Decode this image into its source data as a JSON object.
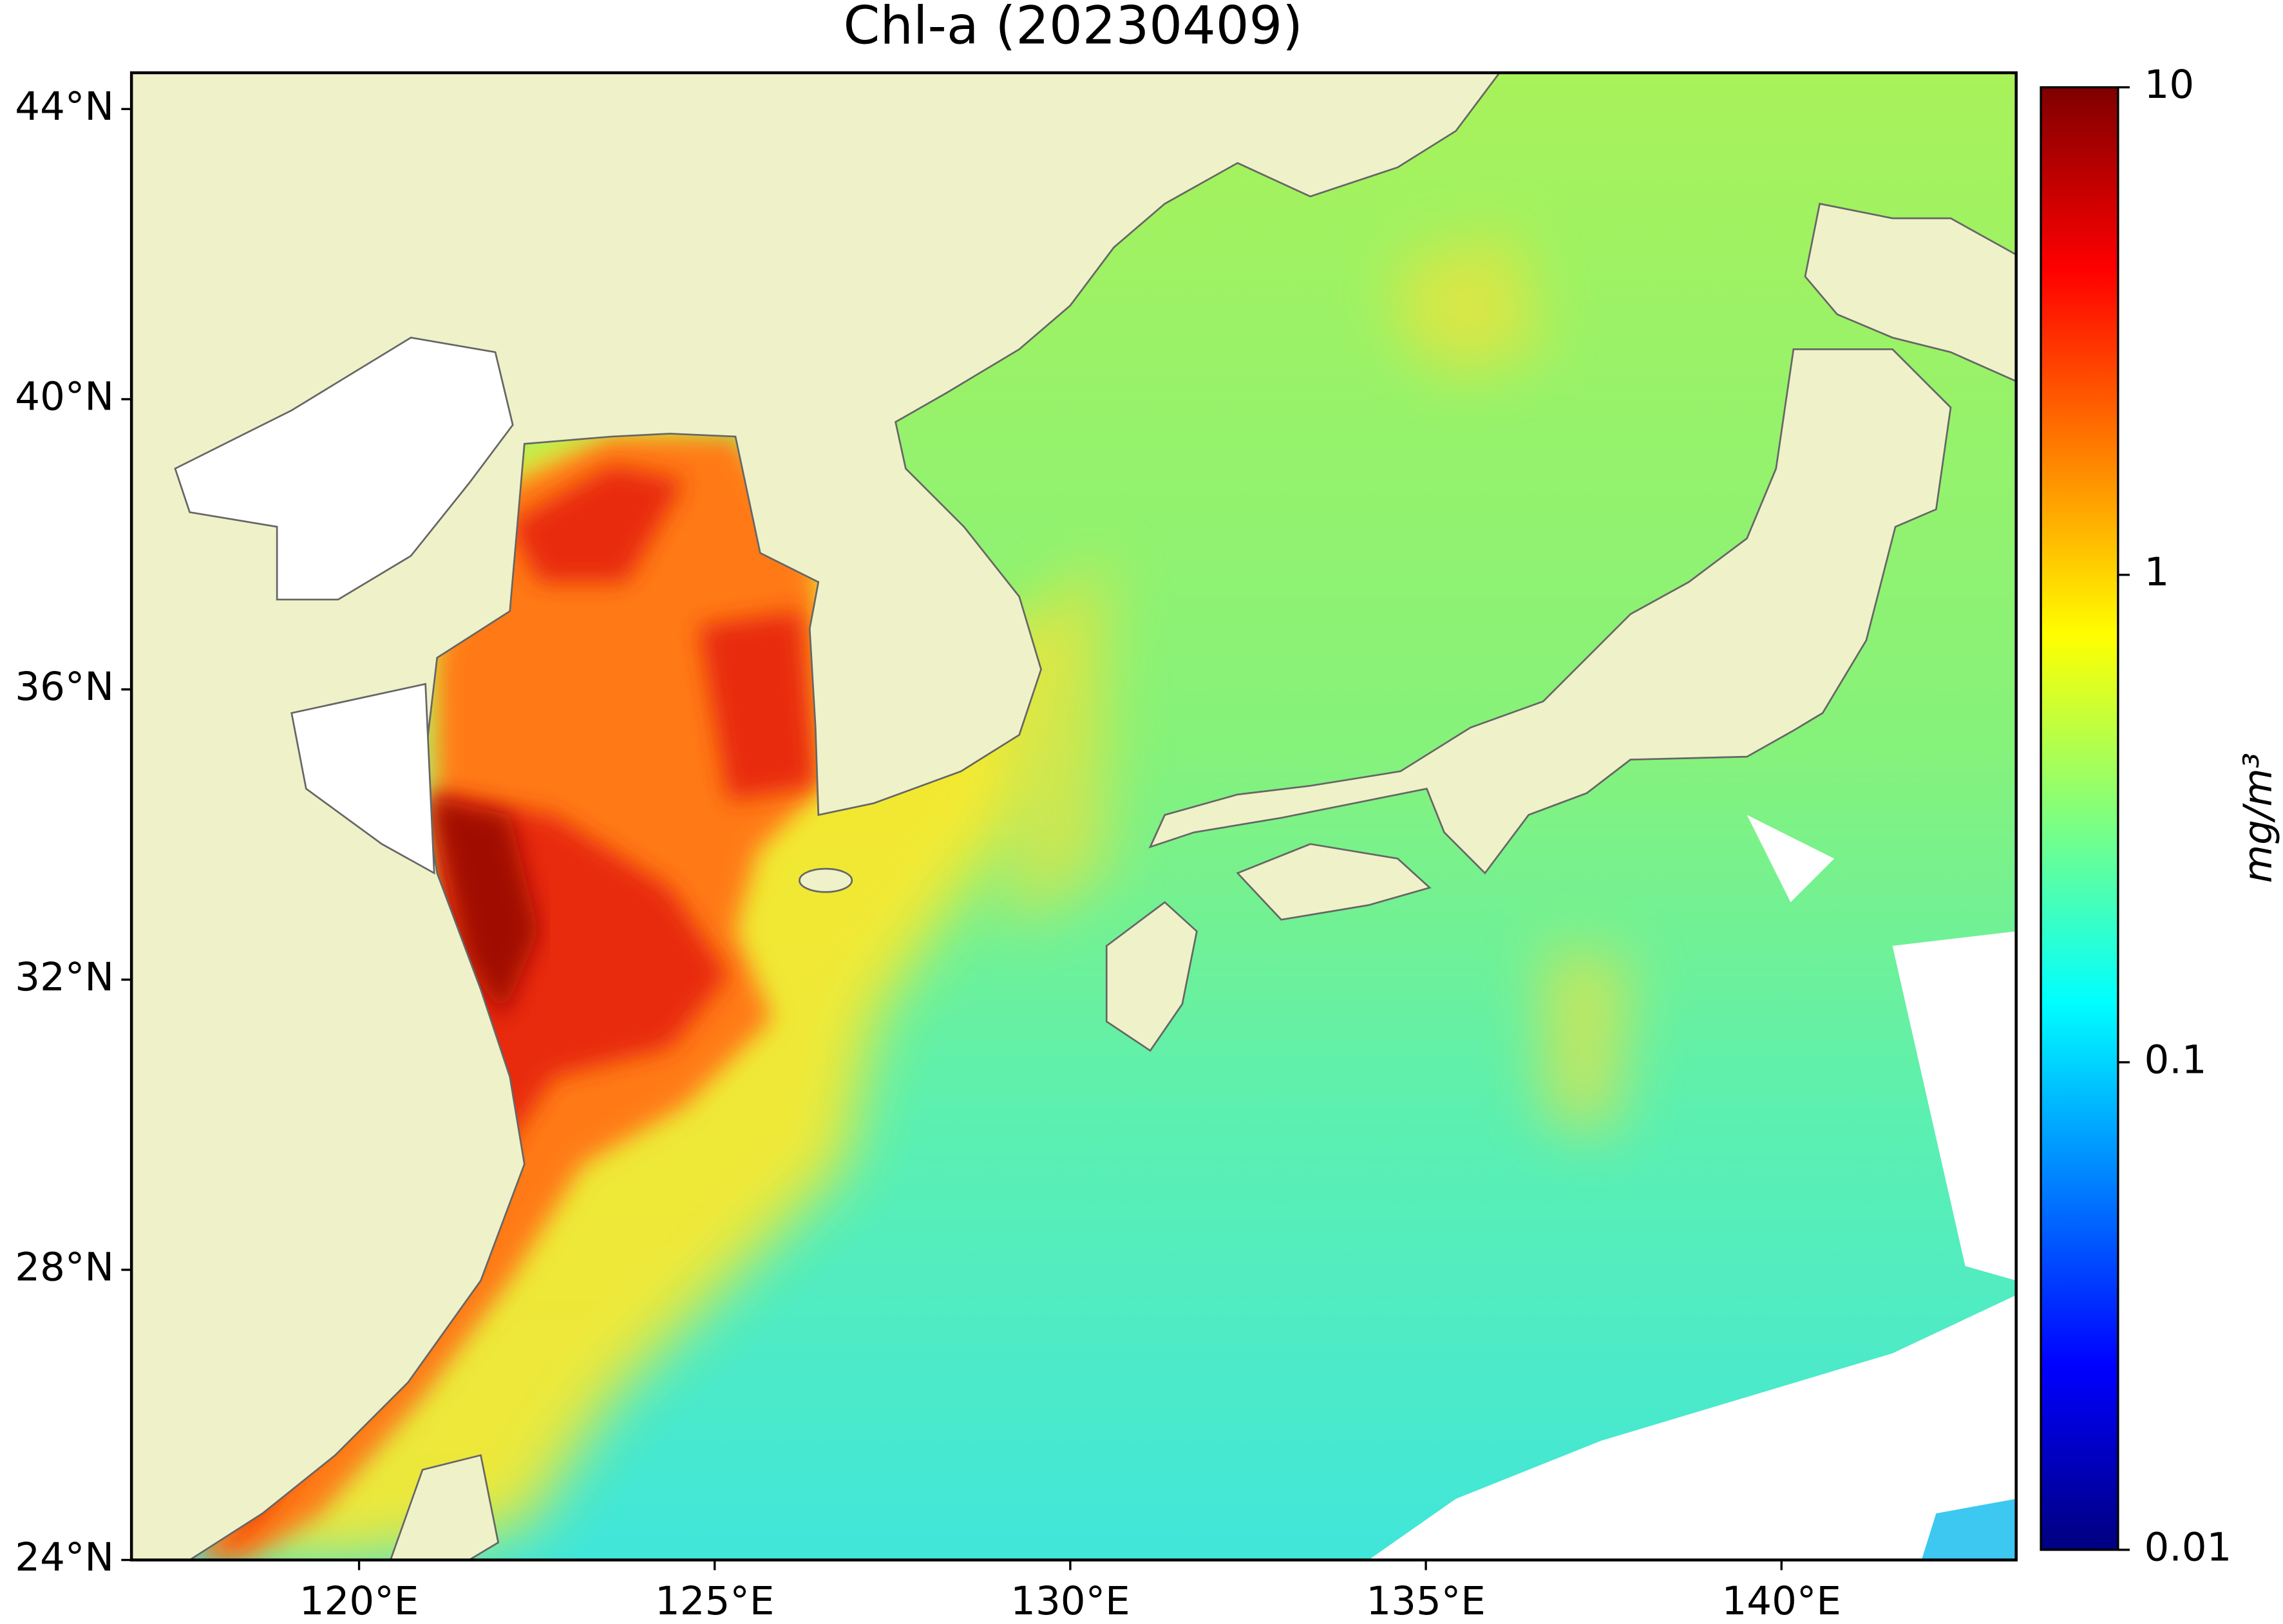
{
  "chart_data": {
    "type": "map",
    "title": "Chl-a (20230409)",
    "xlim": [
      116.8,
      143.3
    ],
    "ylim": [
      24,
      44.5
    ],
    "xticks": [
      {
        "value": 120,
        "label": "120°E"
      },
      {
        "value": 125,
        "label": "125°E"
      },
      {
        "value": 130,
        "label": "130°E"
      },
      {
        "value": 135,
        "label": "135°E"
      },
      {
        "value": 140,
        "label": "140°E"
      }
    ],
    "yticks": [
      {
        "value": 24,
        "label": "24°N"
      },
      {
        "value": 28,
        "label": "28°N"
      },
      {
        "value": 32,
        "label": "32°N"
      },
      {
        "value": 36,
        "label": "36°N"
      },
      {
        "value": 40,
        "label": "40°N"
      },
      {
        "value": 44,
        "label": "44°N"
      }
    ],
    "land_color": "#eff2c8",
    "colorbar": {
      "label": "mg/m³",
      "scale": "log",
      "lim": [
        0.01,
        10
      ],
      "ticks": [
        0.01,
        0.1,
        1,
        10
      ],
      "colormap": [
        "#00007f",
        "#0000ff",
        "#007fff",
        "#00ffff",
        "#7fff7f",
        "#ffff00",
        "#ff7f00",
        "#ff0000",
        "#7f0000"
      ]
    }
  }
}
